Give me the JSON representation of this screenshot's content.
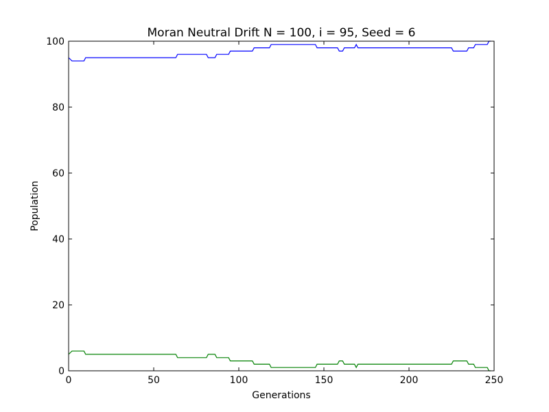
{
  "chart_data": {
    "type": "line",
    "title": "Moran Neutral Drift N = 100, i = 95, Seed = 6",
    "xlabel": "Generations",
    "ylabel": "Population",
    "xlim": [
      0,
      250
    ],
    "ylim": [
      0,
      100
    ],
    "xticks": [
      0,
      50,
      100,
      150,
      200,
      250
    ],
    "yticks": [
      0,
      20,
      40,
      60,
      80,
      100
    ],
    "grid": false,
    "series": [
      {
        "color": "#0000ff",
        "x": [
          0,
          2,
          9,
          10,
          63,
          64,
          81,
          82,
          86,
          87,
          94,
          95,
          108,
          109,
          118,
          119,
          145,
          146,
          158,
          159,
          161,
          162,
          168,
          169,
          170,
          225,
          226,
          234,
          235,
          238,
          239,
          246,
          247,
          248
        ],
        "y": [
          95,
          94,
          94,
          95,
          95,
          96,
          96,
          95,
          95,
          96,
          96,
          97,
          97,
          98,
          98,
          99,
          99,
          98,
          98,
          97,
          97,
          98,
          98,
          99,
          98,
          98,
          97,
          97,
          98,
          98,
          99,
          99,
          100,
          100
        ]
      },
      {
        "color": "#008000",
        "x": [
          0,
          2,
          9,
          10,
          63,
          64,
          81,
          82,
          86,
          87,
          94,
          95,
          108,
          109,
          118,
          119,
          145,
          146,
          158,
          159,
          161,
          162,
          168,
          169,
          170,
          225,
          226,
          234,
          235,
          238,
          239,
          246,
          247,
          248
        ],
        "y": [
          5,
          6,
          6,
          5,
          5,
          4,
          4,
          5,
          5,
          4,
          4,
          3,
          3,
          2,
          2,
          1,
          1,
          2,
          2,
          3,
          3,
          2,
          2,
          1,
          2,
          2,
          3,
          3,
          2,
          2,
          1,
          1,
          0,
          0
        ]
      }
    ]
  }
}
